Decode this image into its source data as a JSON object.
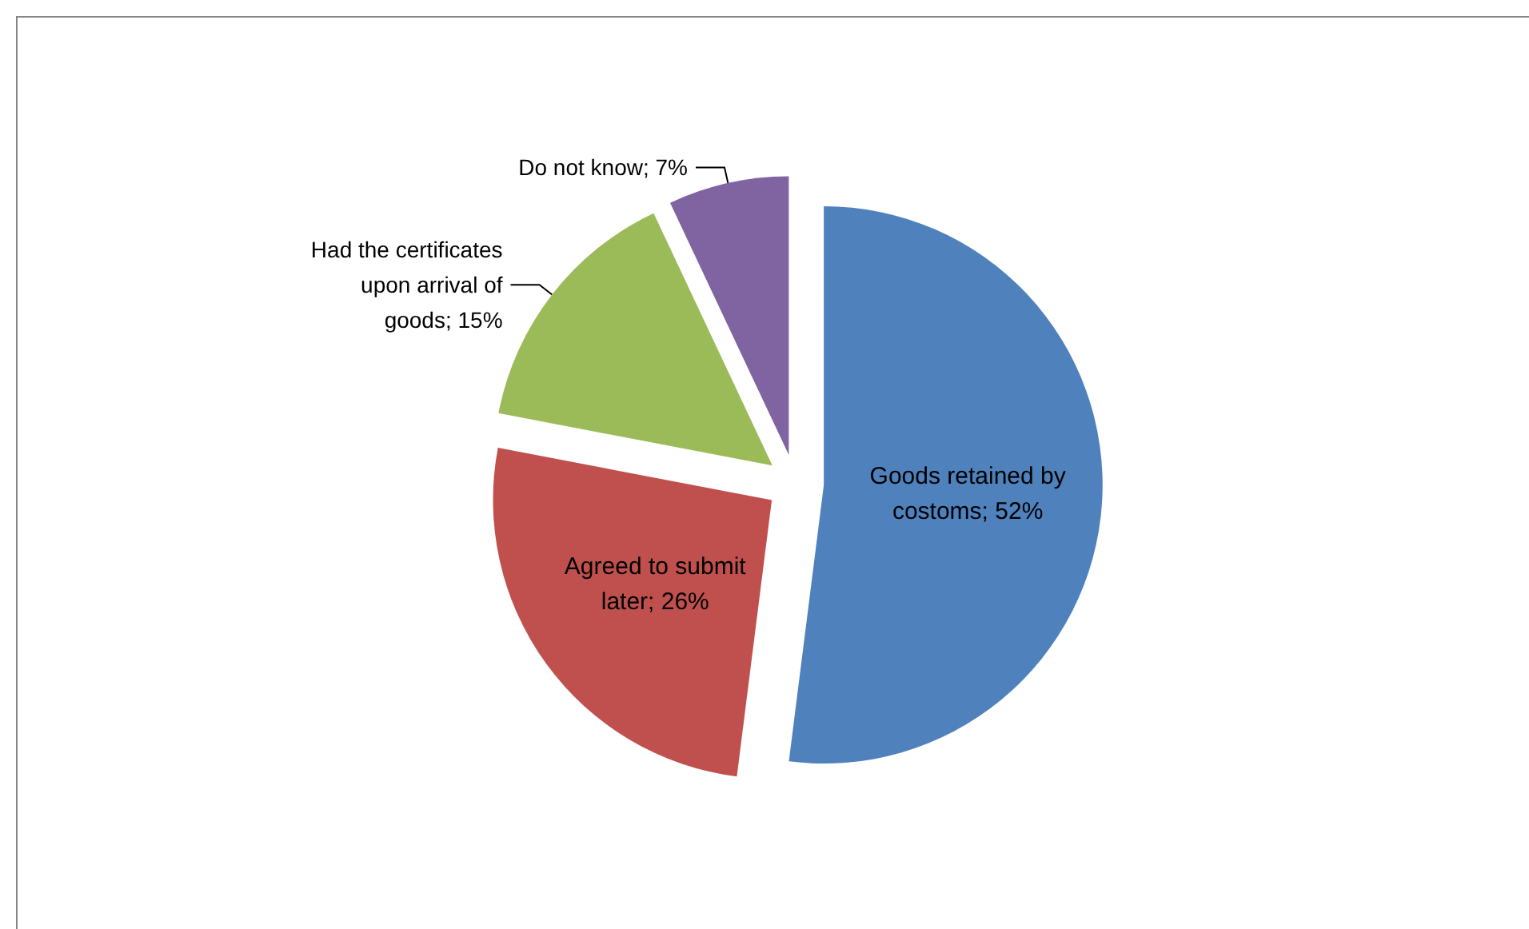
{
  "chart_data": {
    "type": "pie",
    "categories": [
      "Goods retained by costoms",
      "Agreed to submit later",
      "Had the certificates upon arrival of goods",
      "Do not know"
    ],
    "values": [
      52,
      26,
      15,
      7
    ],
    "value_labels": [
      "52%",
      "26%",
      "15%",
      "7%"
    ],
    "colors": [
      "#4f81bd",
      "#c0504d",
      "#9bbb59",
      "#8064a2"
    ],
    "legend": false
  }
}
